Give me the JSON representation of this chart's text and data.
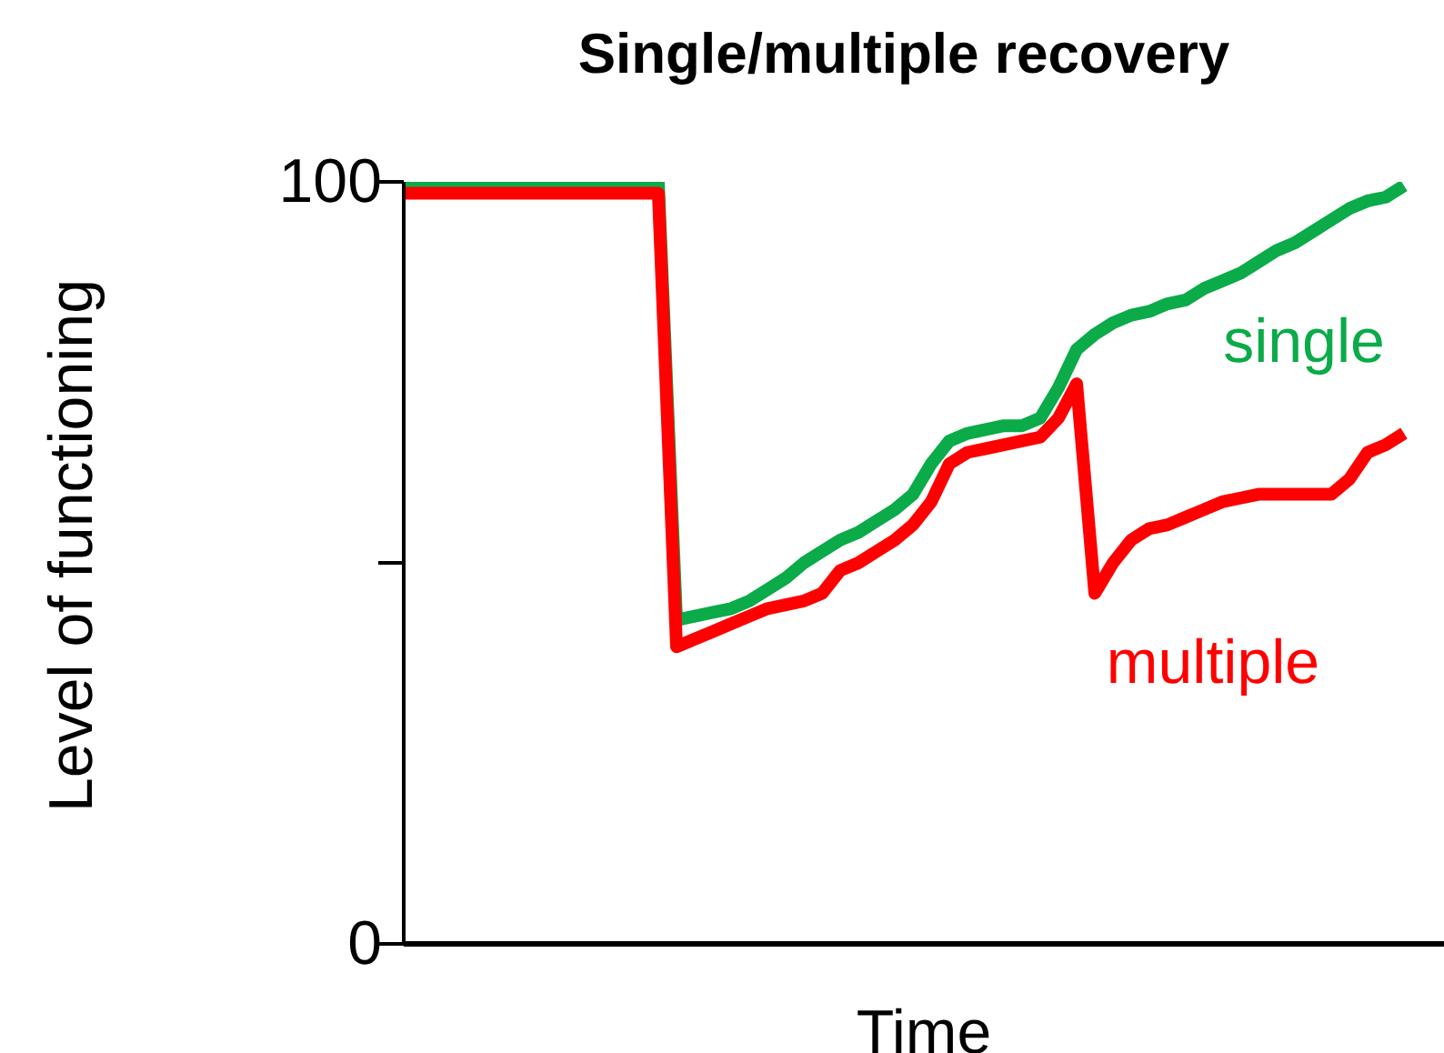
{
  "chart_data": {
    "type": "line",
    "title": "Single/multiple recovery",
    "xlabel": "Time",
    "ylabel": "Level of functioning",
    "categories": [
      null,
      null,
      null,
      null,
      null,
      null,
      null,
      null,
      null,
      null,
      null,
      null,
      null,
      null,
      null,
      null,
      null,
      null,
      null,
      null,
      null,
      null,
      null,
      null,
      null,
      null,
      null,
      null,
      null,
      null,
      null,
      null,
      null,
      null,
      null,
      null,
      null,
      null,
      null,
      null,
      null,
      null,
      null,
      null,
      null,
      null,
      null,
      null,
      null,
      null,
      null,
      null,
      null,
      null,
      null,
      null
    ],
    "series": [
      {
        "name": "single",
        "color": "#0aab48",
        "values": [
          100,
          100,
          100,
          100,
          100,
          100,
          100,
          100,
          100,
          100,
          100,
          100,
          100,
          100,
          100,
          42.5,
          43,
          43.5,
          44,
          45,
          46.5,
          48,
          50,
          51.5,
          53,
          54,
          55.5,
          57,
          59,
          63,
          66,
          67,
          67.5,
          68,
          68,
          69,
          73,
          78,
          80,
          81.5,
          82.5,
          83,
          84,
          84.5,
          86,
          87,
          88,
          89.5,
          91,
          92,
          93.5,
          95,
          96.5,
          97.5,
          98,
          99.5
        ]
      },
      {
        "name": "multiple",
        "color": "#ff0000",
        "values": [
          98.5,
          98.5,
          98.5,
          98.5,
          98.5,
          98.5,
          98.5,
          98.5,
          98.5,
          98.5,
          98.5,
          98.5,
          98.5,
          98.5,
          98.5,
          39,
          40,
          41,
          42,
          43,
          44,
          44.5,
          45,
          46,
          49,
          50,
          51.5,
          53,
          55,
          58,
          63,
          64.5,
          65,
          65.5,
          66,
          66.5,
          69,
          73.5,
          46,
          50,
          53,
          54.5,
          55,
          56,
          57,
          58,
          58.5,
          59,
          59,
          59,
          59,
          59,
          61,
          64.5,
          65.5,
          67
        ]
      }
    ],
    "ylim": [
      0,
      100
    ],
    "yticks": [
      0,
      {
        "value": 50,
        "label": null
      },
      100
    ],
    "tick_labels": "y",
    "grid": false,
    "legend": false,
    "marker": "none",
    "line_style": "solid"
  }
}
